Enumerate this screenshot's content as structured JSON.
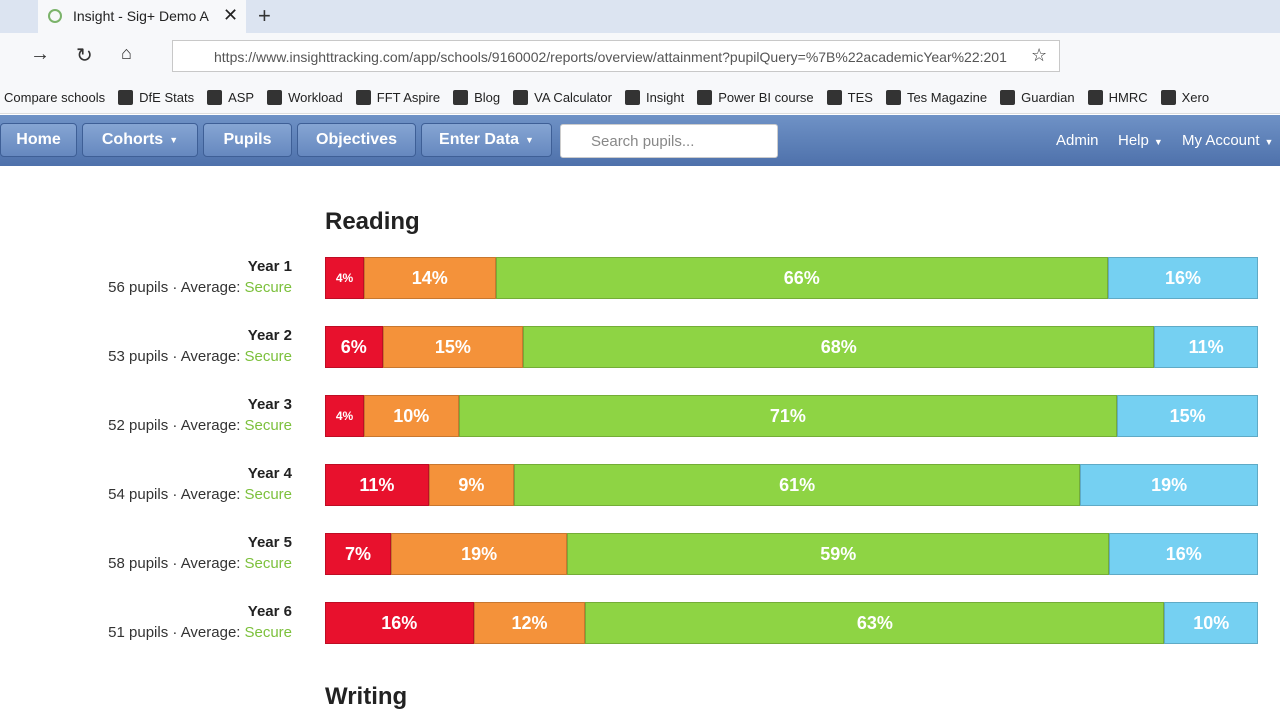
{
  "browser": {
    "tab_title": "Insight - Sig+ Demo A",
    "url": "https://www.insighttracking.com/app/schools/9160002/reports/overview/attainment?pupilQuery=%7B%22academicYear%22:201",
    "bookmarks": [
      "Compare schools",
      "DfE Stats",
      "ASP",
      "Workload",
      "FFT Aspire",
      "Blog",
      "VA Calculator",
      "Insight",
      "Power BI course",
      "TES",
      "Tes Magazine",
      "Guardian",
      "HMRC",
      "Xero"
    ]
  },
  "nav": {
    "items": [
      "Home",
      "Cohorts",
      "Pupils",
      "Objectives",
      "Enter Data"
    ],
    "search_placeholder": "Search pupils...",
    "right_items": [
      "Admin",
      "Help",
      "My Account"
    ]
  },
  "report": {
    "segment_colors": [
      "#e8112d",
      "#f4923a",
      "#8ed444",
      "#75d0f2"
    ],
    "sections": [
      {
        "title": "Reading",
        "rows": [
          {
            "year": "Year 1",
            "summary": "56 pupils · Average:",
            "average": "Secure",
            "values": [
              4,
              14,
              66,
              16
            ],
            "value_labels": [
              "4%",
              "14%",
              "66%",
              "16%"
            ]
          },
          {
            "year": "Year 2",
            "summary": "53 pupils · Average:",
            "average": "Secure",
            "values": [
              6,
              15,
              68,
              11
            ],
            "value_labels": [
              "6%",
              "15%",
              "68%",
              "11%"
            ]
          },
          {
            "year": "Year 3",
            "summary": "52 pupils · Average:",
            "average": "Secure",
            "values": [
              4,
              10,
              71,
              15
            ],
            "value_labels": [
              "4%",
              "10%",
              "71%",
              "15%"
            ]
          },
          {
            "year": "Year 4",
            "summary": "54 pupils · Average:",
            "average": "Secure",
            "values": [
              11,
              9,
              61,
              19
            ],
            "value_labels": [
              "11%",
              "9%",
              "61%",
              "19%"
            ]
          },
          {
            "year": "Year 5",
            "summary": "58 pupils · Average:",
            "average": "Secure",
            "values": [
              7,
              19,
              59,
              16
            ],
            "value_labels": [
              "7%",
              "19%",
              "59%",
              "16%"
            ]
          },
          {
            "year": "Year 6",
            "summary": "51 pupils · Average:",
            "average": "Secure",
            "values": [
              16,
              12,
              63,
              10
            ],
            "value_labels": [
              "16%",
              "12%",
              "63%",
              "10%"
            ]
          }
        ]
      },
      {
        "title": "Writing",
        "rows": []
      }
    ]
  }
}
